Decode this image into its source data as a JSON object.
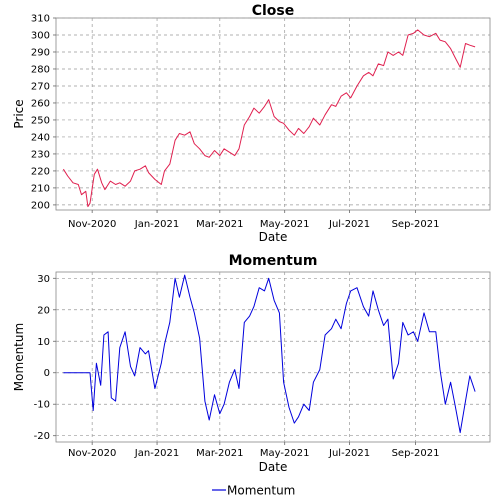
{
  "chart_data": [
    {
      "type": "line",
      "title": "Close",
      "xlabel": "Date",
      "ylabel": "Price",
      "ylim": [
        197,
        310
      ],
      "xlim": [
        "2020-09-28",
        "2021-11-10"
      ],
      "grid": true,
      "color": "#e0204f",
      "x_ticks": [
        "Nov-2020",
        "Jan-2021",
        "Mar-2021",
        "May-2021",
        "Jul-2021",
        "Sep-2021"
      ],
      "x_tick_dates": [
        "2020-11-01",
        "2021-01-01",
        "2021-03-01",
        "2021-05-01",
        "2021-07-01",
        "2021-09-01"
      ],
      "y_ticks": [
        200,
        210,
        220,
        230,
        240,
        250,
        260,
        270,
        280,
        290,
        300,
        310
      ],
      "series": [
        {
          "x": [
            "2020-10-05",
            "2020-10-09",
            "2020-10-14",
            "2020-10-19",
            "2020-10-22",
            "2020-10-26",
            "2020-10-28",
            "2020-10-30",
            "2020-11-03",
            "2020-11-06",
            "2020-11-10",
            "2020-11-13",
            "2020-11-18",
            "2020-11-23",
            "2020-11-27",
            "2020-12-02",
            "2020-12-07",
            "2020-12-11",
            "2020-12-16",
            "2020-12-21",
            "2020-12-24",
            "2020-12-30",
            "2021-01-05",
            "2021-01-08",
            "2021-01-13",
            "2021-01-18",
            "2021-01-22",
            "2021-01-27",
            "2021-02-01",
            "2021-02-05",
            "2021-02-10",
            "2021-02-15",
            "2021-02-19",
            "2021-02-24",
            "2021-03-01",
            "2021-03-05",
            "2021-03-10",
            "2021-03-15",
            "2021-03-19",
            "2021-03-24",
            "2021-03-29",
            "2021-04-02",
            "2021-04-07",
            "2021-04-12",
            "2021-04-16",
            "2021-04-21",
            "2021-04-26",
            "2021-04-30",
            "2021-05-05",
            "2021-05-10",
            "2021-05-14",
            "2021-05-19",
            "2021-05-24",
            "2021-05-28",
            "2021-06-03",
            "2021-06-08",
            "2021-06-14",
            "2021-06-18",
            "2021-06-23",
            "2021-06-28",
            "2021-07-02",
            "2021-07-08",
            "2021-07-14",
            "2021-07-19",
            "2021-07-23",
            "2021-07-28",
            "2021-08-02",
            "2021-08-06",
            "2021-08-11",
            "2021-08-16",
            "2021-08-20",
            "2021-08-25",
            "2021-08-30",
            "2021-09-03",
            "2021-09-09",
            "2021-09-14",
            "2021-09-20",
            "2021-09-24",
            "2021-09-29",
            "2021-10-04",
            "2021-10-08",
            "2021-10-13",
            "2021-10-18",
            "2021-10-22",
            "2021-10-27"
          ],
          "y": [
            221,
            217,
            213,
            212,
            206,
            208,
            199,
            201,
            218,
            221,
            213,
            209,
            214,
            212,
            213,
            211,
            214,
            220,
            221,
            223,
            219,
            215,
            212,
            220,
            224,
            238,
            242,
            241,
            243,
            236,
            233,
            229,
            228,
            232,
            229,
            233,
            231,
            229,
            233,
            247,
            252,
            257,
            254,
            258,
            262,
            252,
            249,
            248,
            244,
            241,
            245,
            242,
            246,
            251,
            247,
            253,
            259,
            258,
            264,
            266,
            263,
            270,
            276,
            278,
            276,
            283,
            282,
            290,
            288,
            290,
            288,
            300,
            301,
            303,
            300,
            299,
            301,
            297,
            296,
            292,
            287,
            281,
            295,
            294,
            293
          ]
        }
      ]
    },
    {
      "type": "line",
      "title": "Momentum",
      "xlabel": "Date",
      "ylabel": "Momentum",
      "ylim": [
        -22,
        32
      ],
      "xlim": [
        "2020-09-28",
        "2021-11-10"
      ],
      "grid": true,
      "color": "#0000dd",
      "x_ticks": [
        "Nov-2020",
        "Jan-2021",
        "Mar-2021",
        "May-2021",
        "Jul-2021",
        "Sep-2021"
      ],
      "x_tick_dates": [
        "2020-11-01",
        "2021-01-01",
        "2021-03-01",
        "2021-05-01",
        "2021-07-01",
        "2021-09-01"
      ],
      "y_ticks": [
        -20,
        -10,
        0,
        10,
        20,
        30
      ],
      "legend": "bottom-center",
      "series": [
        {
          "name": "Momentum",
          "x": [
            "2020-10-05",
            "2020-10-12",
            "2020-10-19",
            "2020-10-26",
            "2020-10-30",
            "2020-11-02",
            "2020-11-05",
            "2020-11-09",
            "2020-11-12",
            "2020-11-16",
            "2020-11-19",
            "2020-11-23",
            "2020-11-27",
            "2020-12-02",
            "2020-12-07",
            "2020-12-11",
            "2020-12-16",
            "2020-12-21",
            "2020-12-24",
            "2020-12-30",
            "2021-01-05",
            "2021-01-08",
            "2021-01-13",
            "2021-01-18",
            "2021-01-22",
            "2021-01-27",
            "2021-02-01",
            "2021-02-05",
            "2021-02-10",
            "2021-02-15",
            "2021-02-19",
            "2021-02-24",
            "2021-03-01",
            "2021-03-05",
            "2021-03-10",
            "2021-03-15",
            "2021-03-19",
            "2021-03-24",
            "2021-03-29",
            "2021-04-02",
            "2021-04-07",
            "2021-04-12",
            "2021-04-16",
            "2021-04-21",
            "2021-04-26",
            "2021-04-30",
            "2021-05-05",
            "2021-05-10",
            "2021-05-14",
            "2021-05-19",
            "2021-05-24",
            "2021-05-28",
            "2021-06-03",
            "2021-06-08",
            "2021-06-14",
            "2021-06-18",
            "2021-06-23",
            "2021-06-28",
            "2021-07-02",
            "2021-07-08",
            "2021-07-14",
            "2021-07-19",
            "2021-07-23",
            "2021-07-28",
            "2021-08-02",
            "2021-08-06",
            "2021-08-11",
            "2021-08-16",
            "2021-08-20",
            "2021-08-25",
            "2021-08-30",
            "2021-09-03",
            "2021-09-09",
            "2021-09-14",
            "2021-09-20",
            "2021-09-24",
            "2021-09-29",
            "2021-10-04",
            "2021-10-08",
            "2021-10-13",
            "2021-10-18",
            "2021-10-22",
            "2021-10-27"
          ],
          "y": [
            0,
            0,
            0,
            0,
            0,
            -12,
            3,
            -4,
            12,
            13,
            -8,
            -9,
            8,
            13,
            2,
            -1,
            8,
            6,
            7,
            -5,
            3,
            9,
            16,
            30,
            24,
            31,
            24,
            19,
            11,
            -9,
            -15,
            -7,
            -13,
            -10,
            -3,
            1,
            -5,
            16,
            18,
            21,
            27,
            26,
            30,
            23,
            19,
            -3,
            -11,
            -16,
            -14,
            -10,
            -12,
            -3,
            1,
            12,
            14,
            17,
            14,
            22,
            26,
            27,
            21,
            18,
            26,
            20,
            15,
            17,
            -2,
            3,
            16,
            12,
            13,
            10,
            19,
            13,
            13,
            1,
            -10,
            -3,
            -10,
            -19,
            -9,
            -1,
            -6
          ]
        }
      ]
    }
  ]
}
